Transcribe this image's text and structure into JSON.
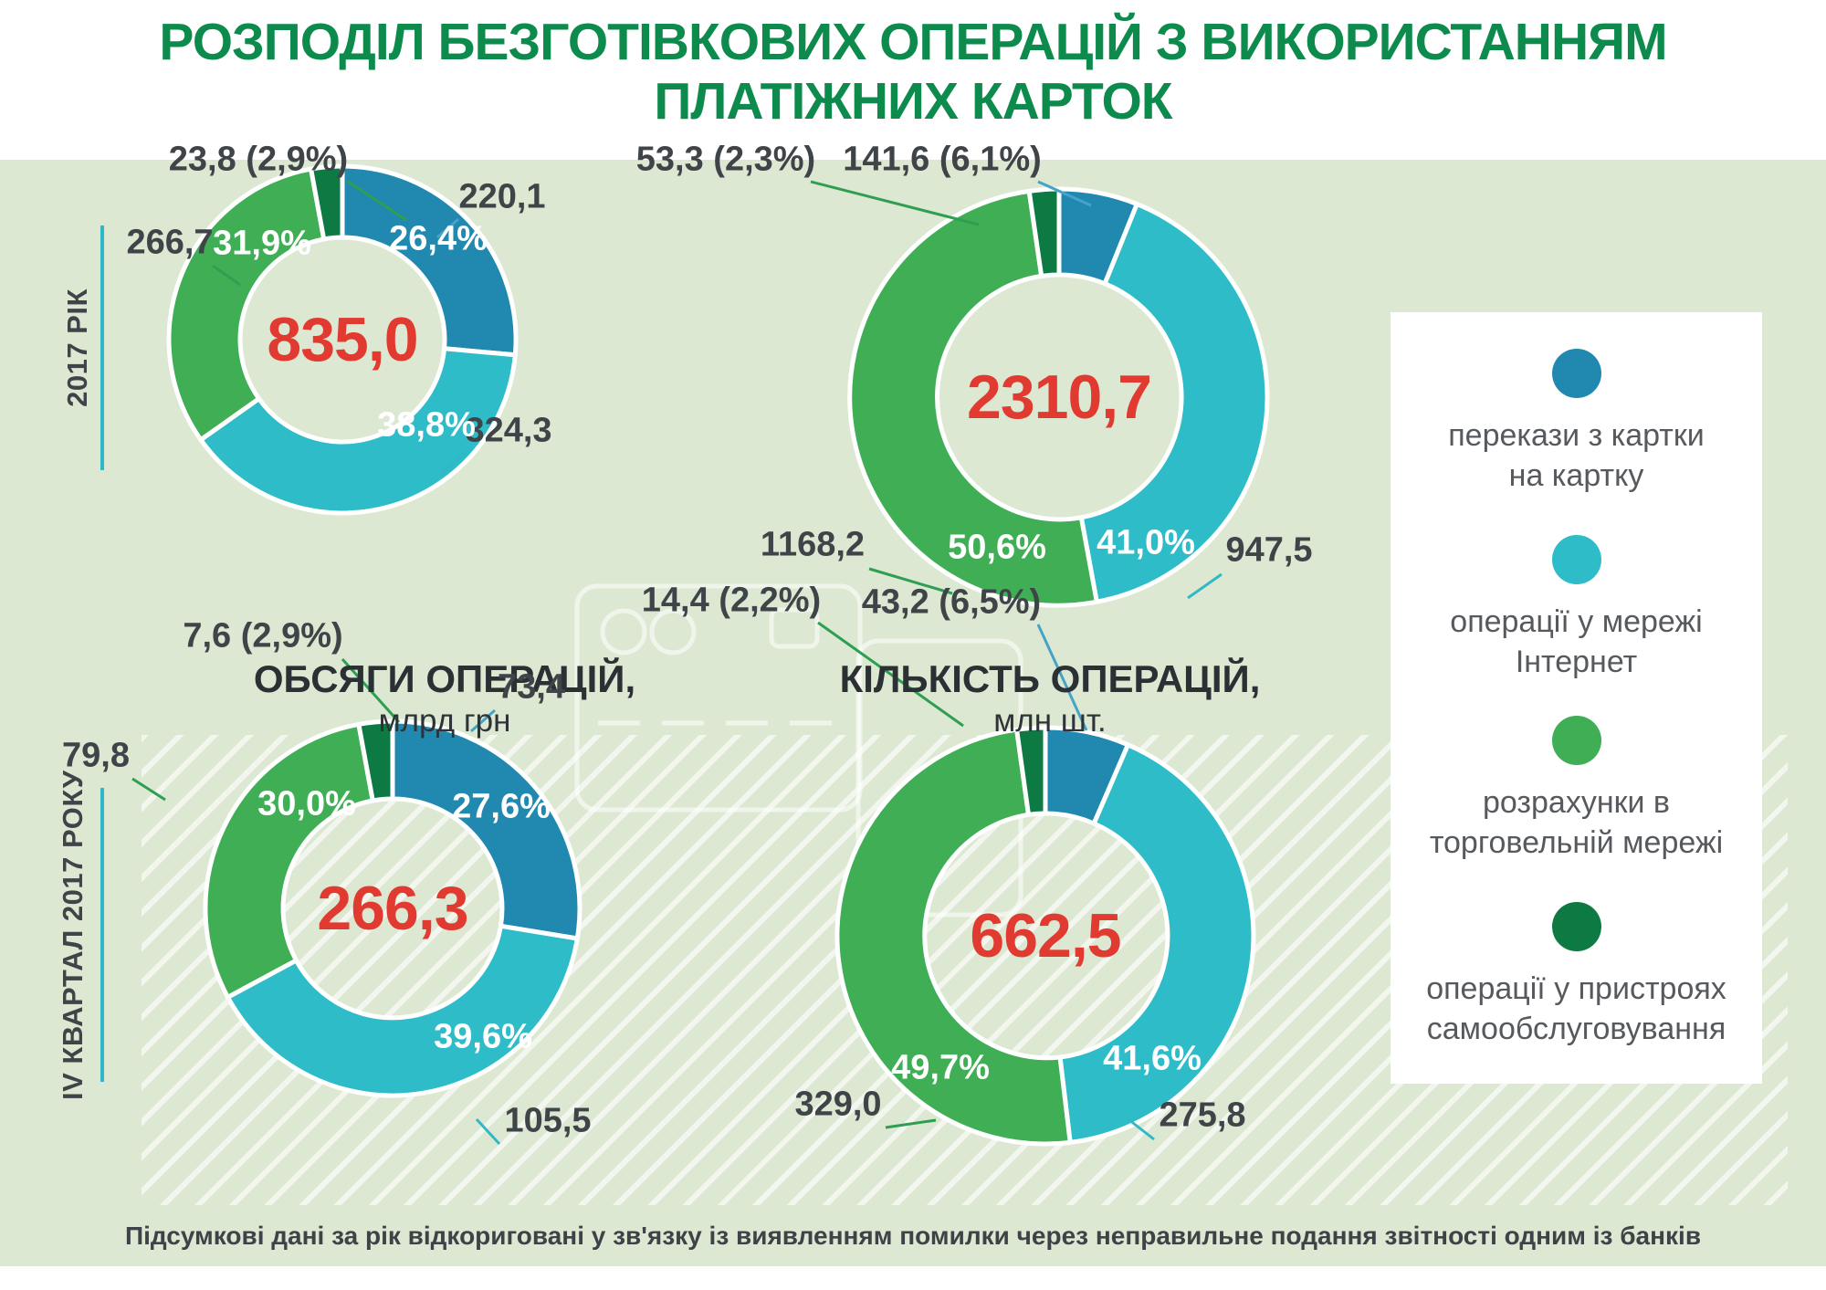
{
  "title": {
    "line1": "РОЗПОДІЛ БЕЗГОТІВКОВИХ ОПЕРАЦІЙ З ВИКОРИСТАННЯМ",
    "line2": "ПЛАТІЖНИХ КАРТОК"
  },
  "rows": [
    {
      "label": "2017 РІК"
    },
    {
      "label": "IV КВАРТАЛ 2017 РОКУ"
    }
  ],
  "columns": [
    {
      "title": "ОБСЯГИ ОПЕРАЦІЙ,",
      "subtitle": "млрд грн"
    },
    {
      "title": "КІЛЬКІСТЬ ОПЕРАЦІЙ,",
      "subtitle": "млн шт."
    }
  ],
  "legend": [
    {
      "label": "перекази з картки на картку",
      "lines": [
        "перекази з картки",
        "на картку"
      ],
      "color": "#2188b0"
    },
    {
      "label": "операції у мережі Інтернет",
      "lines": [
        "операції у мережі",
        "Інтернет"
      ],
      "color": "#2fbcc9"
    },
    {
      "label": "розрахунки в торговельній мережі",
      "lines": [
        "розрахунки в",
        "торговельній мережі"
      ],
      "color": "#3fae54"
    },
    {
      "label": "операції у пристроях самообслуговування",
      "lines": [
        "операції у пристроях",
        "самообслуговування"
      ],
      "color": "#0d7a44"
    }
  ],
  "colors": {
    "blue": "#2188b0",
    "cyan": "#2fbcc9",
    "green": "#3fae54",
    "dark_green": "#0d7a44",
    "red": "#e13a30",
    "title_green": "#0d8b4d",
    "background": "#dde8d2",
    "teal_line": "#2cb9c7",
    "label_text": "#3f4449",
    "underline_blue": "#45a3c8",
    "underline_teal": "#2fb9c7",
    "underline_green": "#2e9e52"
  },
  "footnote": "Підсумкові дані за рік відкориговані у зв'язку із виявленням помилки через неправильне подання звітності одним із банків",
  "chart_data": [
    {
      "type": "pie",
      "subtype": "donut",
      "row_label": "2017 РІК",
      "column_title": "ОБСЯГИ ОПЕРАЦІЙ,",
      "column_subtitle": "млрд грн",
      "total": 835.0,
      "total_label": "835,0",
      "segments": [
        {
          "name": "перекази з картки на картку",
          "color": "#2188b0",
          "value": 220.1,
          "pct": 26.4,
          "pct_label": "26,4%",
          "callout": "220,1"
        },
        {
          "name": "операції у мережі Інтернет",
          "color": "#2fbcc9",
          "value": 324.3,
          "pct": 38.8,
          "pct_label": "38,8%",
          "callout": "324,3"
        },
        {
          "name": "розрахунки в торговельній мережі",
          "color": "#3fae54",
          "value": 266.7,
          "pct": 31.9,
          "pct_label": "31,9%",
          "callout": "266,7"
        },
        {
          "name": "операції у пристроях самообслуговування",
          "color": "#0d7a44",
          "value": 23.8,
          "pct": 2.9,
          "callout": "23,8 (2,9%)"
        }
      ]
    },
    {
      "type": "pie",
      "subtype": "donut",
      "row_label": "2017 РІК",
      "column_title": "КІЛЬКІСТЬ ОПЕРАЦІЙ,",
      "column_subtitle": "млн шт.",
      "total": 2310.7,
      "total_label": "2310,7",
      "segments": [
        {
          "name": "перекази з картки на картку",
          "color": "#2188b0",
          "value": 141.6,
          "pct": 6.1,
          "callout": "141,6 (6,1%)"
        },
        {
          "name": "операції у мережі Інтернет",
          "color": "#2fbcc9",
          "value": 947.5,
          "pct": 41.0,
          "pct_label": "41,0%",
          "callout": "947,5"
        },
        {
          "name": "розрахунки в торговельній мережі",
          "color": "#3fae54",
          "value": 1168.2,
          "pct": 50.6,
          "pct_label": "50,6%",
          "callout": "1168,2"
        },
        {
          "name": "операції у пристроях самообслуговування",
          "color": "#0d7a44",
          "value": 53.3,
          "pct": 2.3,
          "callout": "53,3 (2,3%)"
        }
      ]
    },
    {
      "type": "pie",
      "subtype": "donut",
      "row_label": "IV КВАРТАЛ 2017 РОКУ",
      "column_title": "ОБСЯГИ ОПЕРАЦІЙ,",
      "column_subtitle": "млрд грн",
      "total": 266.3,
      "total_label": "266,3",
      "segments": [
        {
          "name": "перекази з картки на картку",
          "color": "#2188b0",
          "value": 73.4,
          "pct": 27.6,
          "pct_label": "27,6%",
          "callout": "73,4"
        },
        {
          "name": "операції у мережі Інтернет",
          "color": "#2fbcc9",
          "value": 105.5,
          "pct": 39.6,
          "pct_label": "39,6%",
          "callout": "105,5"
        },
        {
          "name": "розрахунки в торговельній мережі",
          "color": "#3fae54",
          "value": 79.8,
          "pct": 30.0,
          "pct_label": "30,0%",
          "callout": "79,8"
        },
        {
          "name": "операції у пристроях самообслуговування",
          "color": "#0d7a44",
          "value": 7.6,
          "pct": 2.9,
          "callout": "7,6 (2,9%)"
        }
      ]
    },
    {
      "type": "pie",
      "subtype": "donut",
      "row_label": "IV КВАРТАЛ 2017 РОКУ",
      "column_title": "КІЛЬКІСТЬ ОПЕРАЦІЙ,",
      "column_subtitle": "млн шт.",
      "total": 662.5,
      "total_label": "662,5",
      "segments": [
        {
          "name": "перекази з картки на картку",
          "color": "#2188b0",
          "value": 43.2,
          "pct": 6.5,
          "callout": "43,2 (6,5%)"
        },
        {
          "name": "операції у мережі Інтернет",
          "color": "#2fbcc9",
          "value": 275.8,
          "pct": 41.6,
          "pct_label": "41,6%",
          "callout": "275,8"
        },
        {
          "name": "розрахунки в торговельній мережі",
          "color": "#3fae54",
          "value": 329.0,
          "pct": 49.7,
          "pct_label": "49,7%",
          "callout": "329,0"
        },
        {
          "name": "операції у пристроях самообслуговування",
          "color": "#0d7a44",
          "value": 14.4,
          "pct": 2.2,
          "callout": "14,4 (2,2%)"
        }
      ]
    }
  ]
}
